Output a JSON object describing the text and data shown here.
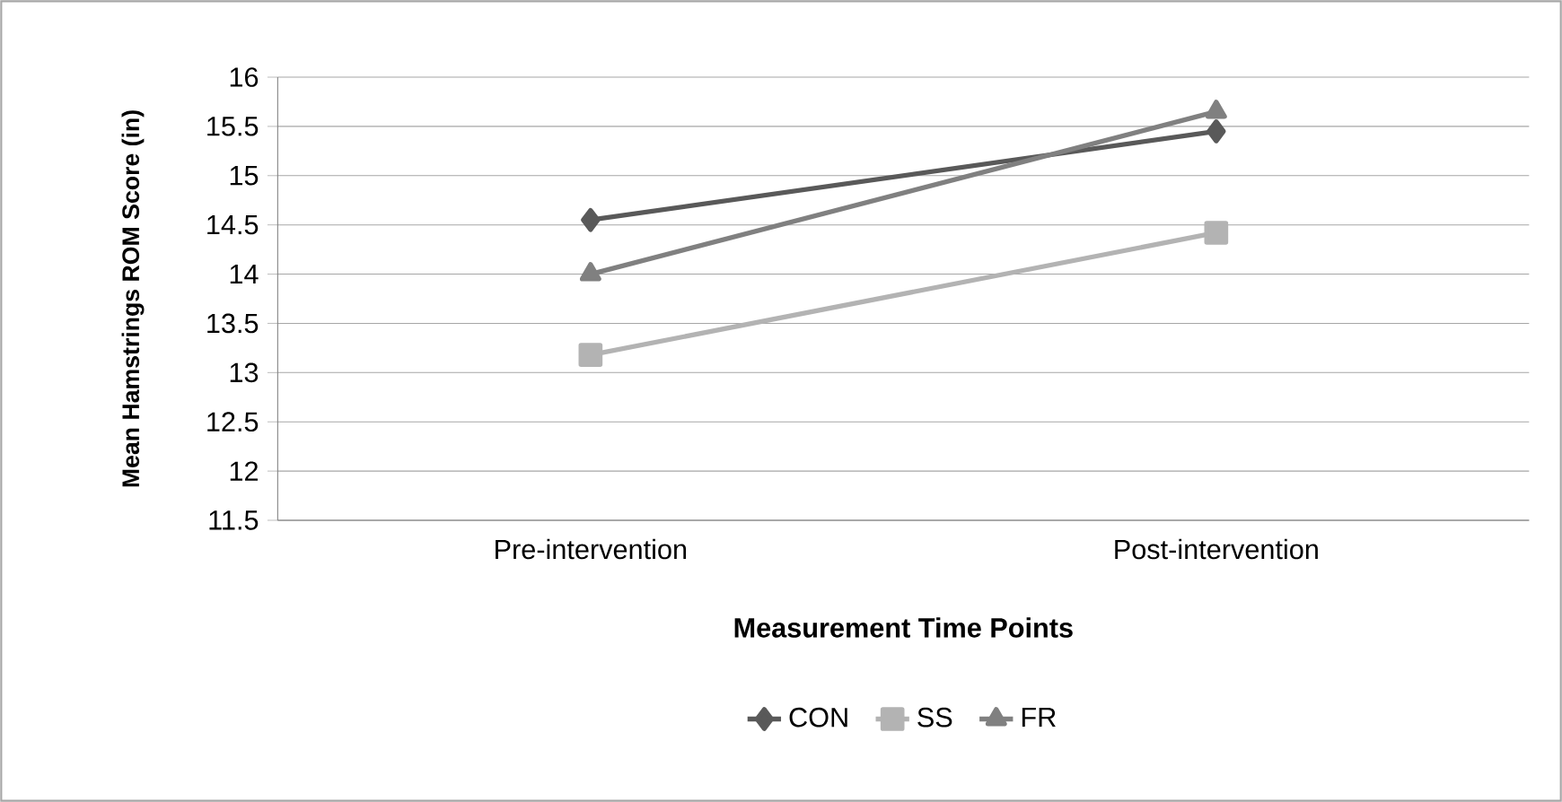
{
  "chart_data": {
    "type": "line",
    "xlabel": "Measurement Time Points",
    "ylabel": "Mean Hamstrings ROM Score (in)",
    "categories": [
      "Pre-intervention",
      "Post-intervention"
    ],
    "series": [
      {
        "name": "CON",
        "color": "#595959",
        "values": [
          14.55,
          15.45
        ],
        "marker": "diamond"
      },
      {
        "name": "SS",
        "color": "#b3b3b3",
        "values": [
          13.18,
          14.42
        ],
        "marker": "square"
      },
      {
        "name": "FR",
        "color": "#808080",
        "values": [
          14.0,
          15.65
        ],
        "marker": "triangle"
      }
    ],
    "ylim": [
      11.5,
      16
    ],
    "yticks": [
      11.5,
      12,
      12.5,
      13,
      13.5,
      14,
      14.5,
      15,
      15.5,
      16
    ],
    "grid": "y",
    "legend": "bottom",
    "line_style": "solid"
  }
}
